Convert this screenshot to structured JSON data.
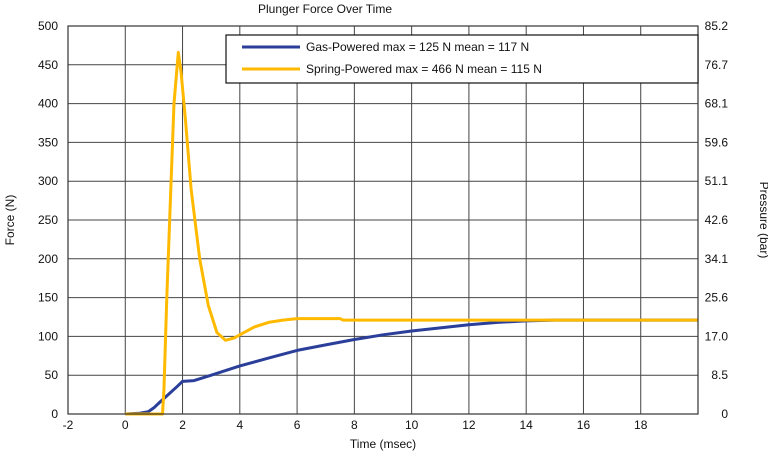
{
  "chart_data": {
    "type": "line",
    "title": "Plunger Force Over Time",
    "xlabel": "Time (msec)",
    "ylabel": "Force (N)",
    "y2label": "Pressure (bar)",
    "xlim": [
      -2,
      20
    ],
    "ylim": [
      0,
      500
    ],
    "y2lim": [
      0,
      85.2
    ],
    "xticks": [
      -2,
      0,
      2,
      4,
      6,
      8,
      10,
      12,
      14,
      16,
      18
    ],
    "yticks": [
      0,
      50,
      100,
      150,
      200,
      250,
      300,
      350,
      400,
      450,
      500
    ],
    "y2ticks": [
      "0",
      "8.5",
      "17.0",
      "25.6",
      "34.1",
      "42.6",
      "51.1",
      "59.6",
      "68.1",
      "76.7",
      "85.2"
    ],
    "grid": true,
    "legend_position": "top-right",
    "series": [
      {
        "name": "Gas-Powered max = 125 N mean = 117 N",
        "color": "#2b3f9a",
        "x": [
          0,
          0.5,
          0.8,
          1.0,
          1.2,
          1.5,
          1.8,
          2.0,
          2.4,
          3,
          4,
          5,
          6,
          7,
          8,
          9,
          10,
          11,
          12,
          13,
          14,
          15,
          20
        ],
        "y": [
          0,
          1,
          3,
          8,
          15,
          25,
          35,
          42,
          43,
          50,
          62,
          72,
          82,
          89,
          96,
          102,
          107,
          111,
          115,
          118,
          120,
          121,
          121
        ]
      },
      {
        "name": "Spring-Powered max = 466 N mean = 115 N",
        "color": "#ffba00",
        "x": [
          0,
          1.3,
          1.35,
          1.45,
          1.6,
          1.7,
          1.85,
          1.95,
          2.1,
          2.3,
          2.6,
          2.9,
          3.2,
          3.5,
          3.8,
          4.0,
          4.5,
          5.0,
          5.5,
          6.0,
          7.5,
          7.6,
          20
        ],
        "y": [
          0,
          0,
          30,
          150,
          300,
          400,
          466,
          440,
          380,
          290,
          200,
          140,
          105,
          95,
          98,
          102,
          112,
          118,
          121,
          123,
          123,
          121,
          121
        ]
      }
    ]
  }
}
